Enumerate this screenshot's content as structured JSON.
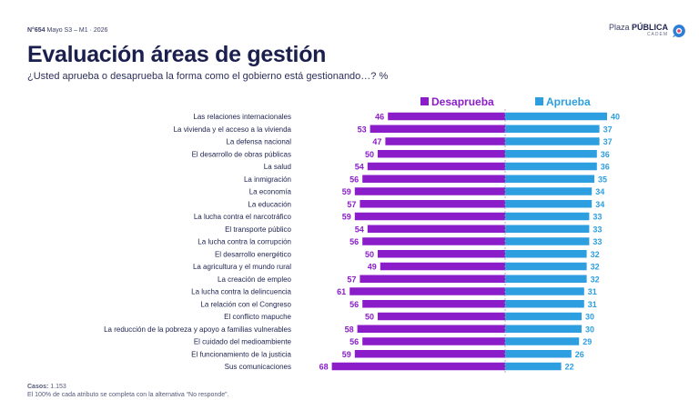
{
  "header": {
    "issue_number": "N°654",
    "issue_date": "Mayo S3 – M1 · 2026",
    "brand_prefix": "Plaza",
    "brand_name": "PÚBLICA",
    "brand_sub": "CADEM",
    "title": "Evaluación áreas de gestión",
    "subtitle": "¿Usted aprueba o desaprueba la forma como el gobierno está gestionando…? %"
  },
  "chart_data": {
    "type": "bar",
    "orientation": "horizontal-diverging",
    "categories": [
      "Las relaciones internacionales",
      "La vivienda y el acceso a la vivienda",
      "La defensa nacional",
      "El desarrollo de obras públicas",
      "La salud",
      "La inmigración",
      "La economía",
      "La educación",
      "La lucha contra el narcotráfico",
      "El transporte público",
      "La lucha contra la corrupción",
      "El desarrollo energético",
      "La agricultura y el mundo rural",
      "La creación de empleo",
      "La lucha contra la delincuencia",
      "La relación con el Congreso",
      "El conflicto mapuche",
      "La reducción de la pobreza y apoyo a familias vulnerables",
      "El cuidado del medioambiente",
      "El funcionamiento de la justicia",
      "Sus comunicaciones"
    ],
    "series": [
      {
        "name": "Desaprueba",
        "color": "#8a1cc9",
        "values": [
          46,
          53,
          47,
          50,
          54,
          56,
          59,
          57,
          59,
          54,
          56,
          50,
          49,
          57,
          61,
          56,
          50,
          58,
          56,
          59,
          68
        ]
      },
      {
        "name": "Aprueba",
        "color": "#2d9ee0",
        "values": [
          40,
          37,
          37,
          36,
          36,
          35,
          34,
          34,
          33,
          33,
          33,
          32,
          32,
          32,
          31,
          31,
          30,
          30,
          29,
          26,
          22
        ]
      }
    ],
    "legend_position": "top"
  },
  "footer": {
    "cases_label": "Casos:",
    "cases_value": "1.153",
    "note": "El 100% de cada atributo se completa con la alternativa “No responde”."
  },
  "colors": {
    "title": "#1a1f4d",
    "desaprueba": "#8a1cc9",
    "aprueba": "#2d9ee0",
    "center_line": "#9aa0b4"
  }
}
